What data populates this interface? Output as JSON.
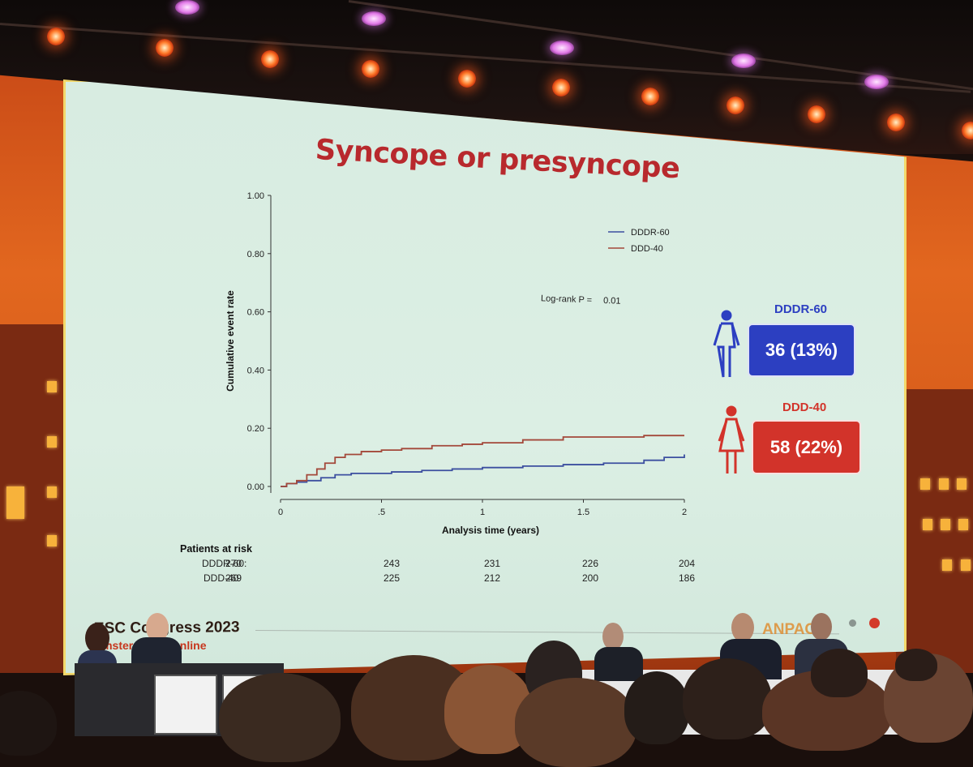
{
  "slide": {
    "title": "Syncope or presyncope",
    "log_rank_label": "Log-rank P =",
    "log_rank_value": "0.01",
    "risk_table": {
      "header": "Patients at risk",
      "rows": [
        {
          "label": "DDDR-60:",
          "values": [
            "270",
            "243",
            "231",
            "226",
            "204"
          ]
        },
        {
          "label": "DDD-40",
          "values": [
            "269",
            "225",
            "212",
            "200",
            "186"
          ]
        }
      ]
    },
    "groups": [
      {
        "name": "DDDR-60",
        "result": "36 (13%)",
        "color": "#2c3fc1"
      },
      {
        "name": "DDD-40",
        "result": "58 (22%)",
        "color": "#d2332a"
      }
    ],
    "footer": {
      "congress": "ESC Congress 2023",
      "location": "Amsterdam & Online",
      "trial_logo": "ANPACE"
    }
  },
  "chart_data": {
    "type": "line",
    "xlabel": "Analysis time (years)",
    "ylabel": "Cumulative event rate",
    "xlim": [
      0,
      2
    ],
    "ylim": [
      0,
      1
    ],
    "x_ticks": [
      "0",
      ".5",
      "1",
      "1.5",
      "2"
    ],
    "x_tick_values": [
      0,
      0.5,
      1,
      1.5,
      2
    ],
    "y_ticks": [
      "0.00",
      "0.20",
      "0.40",
      "0.60",
      "0.80",
      "1.00"
    ],
    "y_tick_values": [
      0,
      0.2,
      0.4,
      0.6,
      0.8,
      1.0
    ],
    "legend_position": "top-right",
    "series": [
      {
        "name": "DDDR-60",
        "color": "#3c4fa0",
        "points": [
          [
            0,
            0
          ],
          [
            0.03,
            0.01
          ],
          [
            0.08,
            0.015
          ],
          [
            0.13,
            0.02
          ],
          [
            0.2,
            0.03
          ],
          [
            0.27,
            0.04
          ],
          [
            0.35,
            0.045
          ],
          [
            0.45,
            0.045
          ],
          [
            0.55,
            0.05
          ],
          [
            0.7,
            0.055
          ],
          [
            0.85,
            0.06
          ],
          [
            1.0,
            0.065
          ],
          [
            1.2,
            0.07
          ],
          [
            1.4,
            0.075
          ],
          [
            1.6,
            0.08
          ],
          [
            1.8,
            0.09
          ],
          [
            1.9,
            0.1
          ],
          [
            2.0,
            0.11
          ]
        ]
      },
      {
        "name": "DDD-40",
        "color": "#a3483a",
        "points": [
          [
            0,
            0
          ],
          [
            0.03,
            0.01
          ],
          [
            0.08,
            0.02
          ],
          [
            0.13,
            0.04
          ],
          [
            0.18,
            0.06
          ],
          [
            0.22,
            0.08
          ],
          [
            0.27,
            0.1
          ],
          [
            0.32,
            0.11
          ],
          [
            0.4,
            0.12
          ],
          [
            0.5,
            0.125
          ],
          [
            0.6,
            0.13
          ],
          [
            0.75,
            0.14
          ],
          [
            0.9,
            0.145
          ],
          [
            1.0,
            0.15
          ],
          [
            1.2,
            0.16
          ],
          [
            1.4,
            0.17
          ],
          [
            1.6,
            0.17
          ],
          [
            1.8,
            0.175
          ],
          [
            2.0,
            0.175
          ]
        ]
      }
    ]
  }
}
